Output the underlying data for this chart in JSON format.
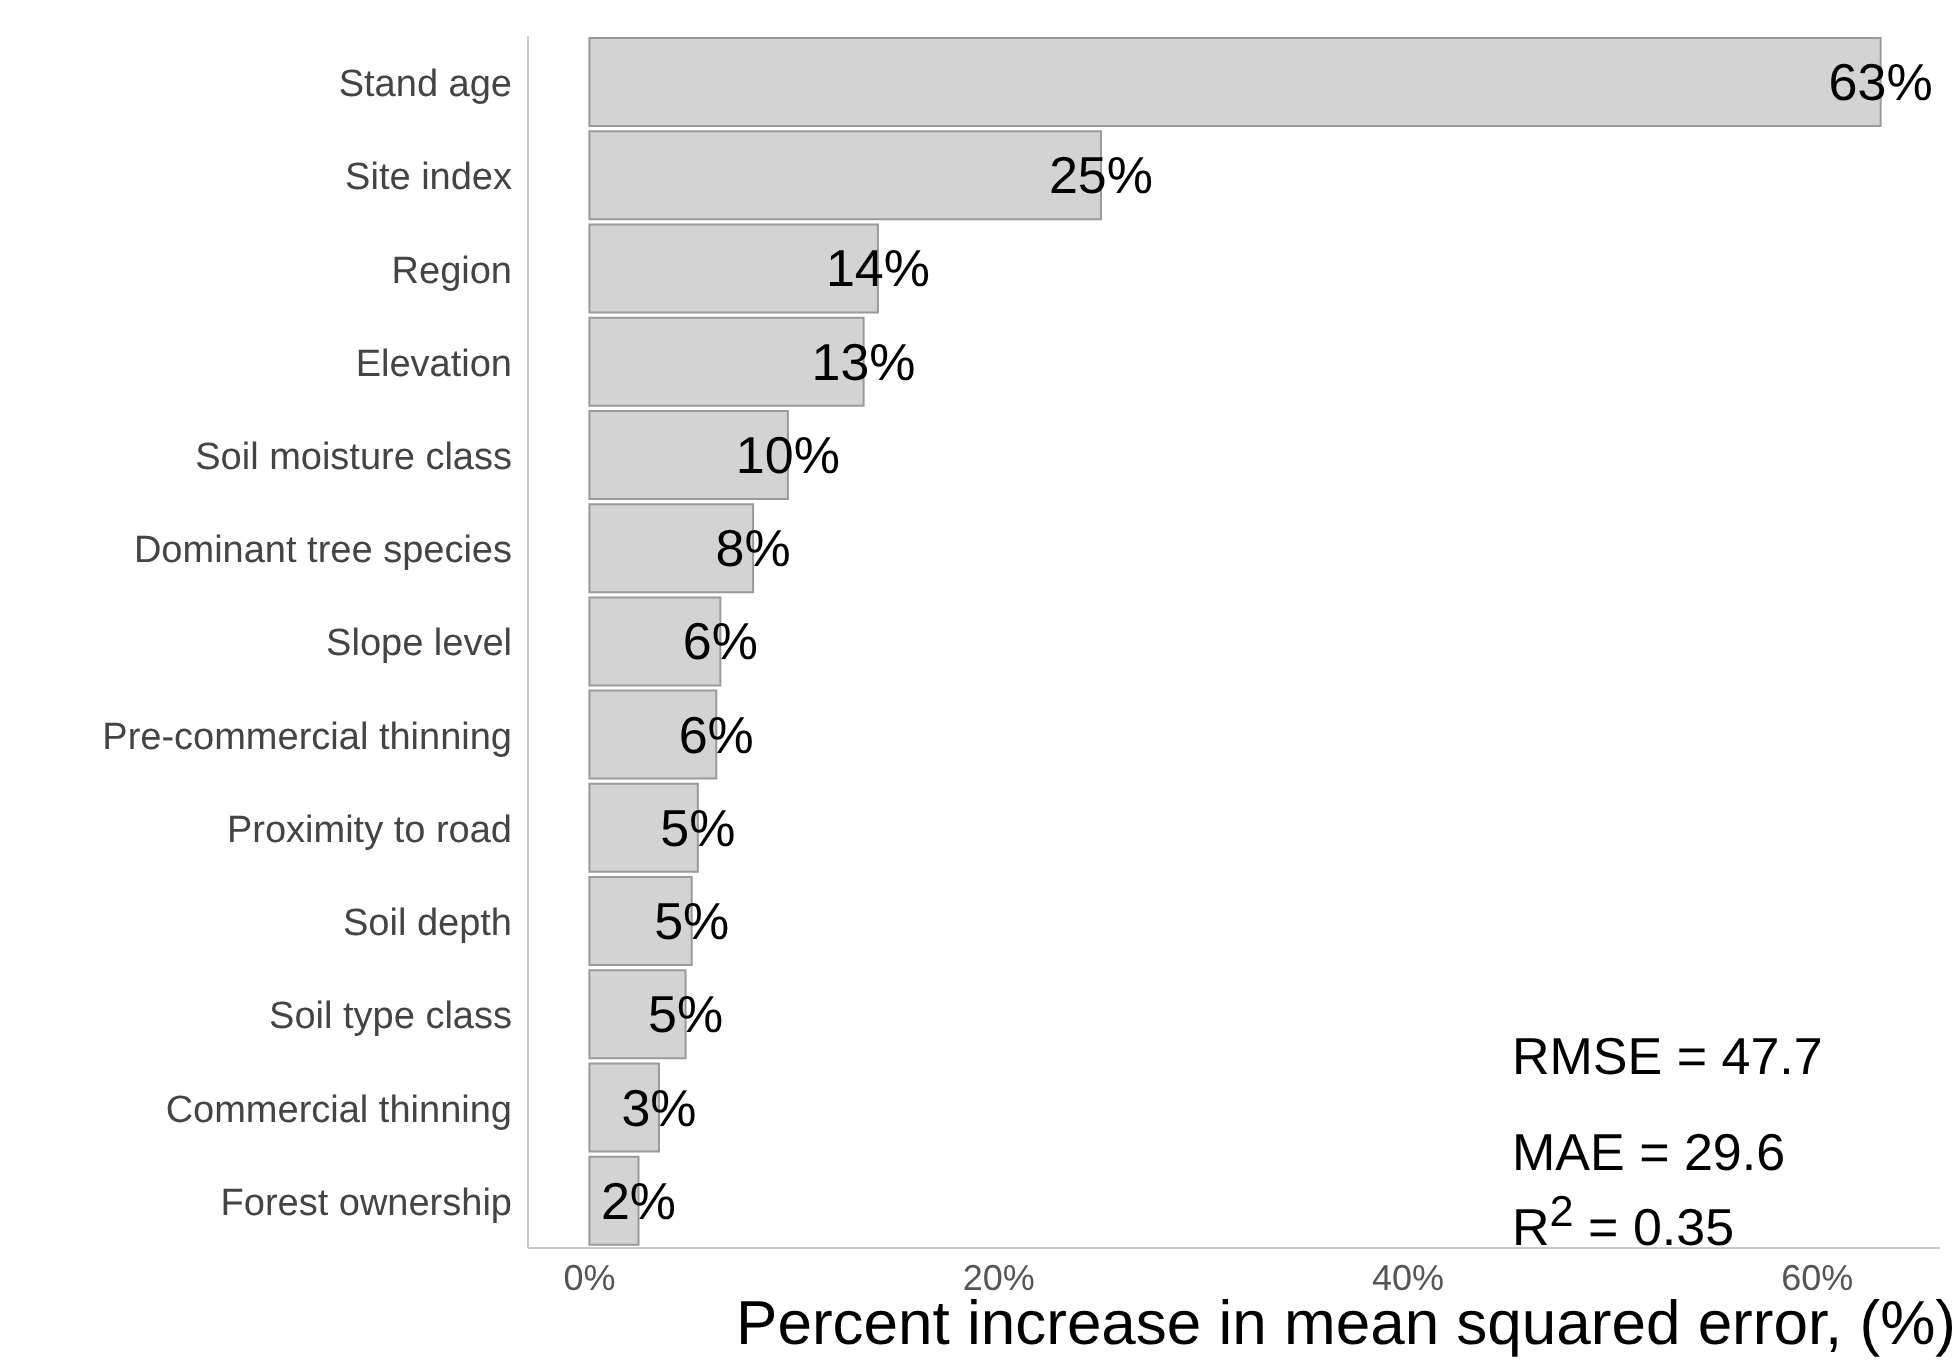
{
  "chart_data": {
    "type": "bar",
    "orientation": "horizontal",
    "xlabel": "Percent increase in mean squared error, (%)",
    "categories": [
      "Stand age",
      "Site index",
      "Region",
      "Elevation",
      "Soil moisture class",
      "Dominant tree species",
      "Slope level",
      "Pre-commercial thinning",
      "Proximity to road",
      "Soil depth",
      "Soil type class",
      "Commercial thinning",
      "Forest ownership"
    ],
    "values": [
      63.1,
      25.0,
      14.1,
      13.4,
      9.7,
      8.0,
      6.4,
      6.2,
      5.3,
      5.0,
      4.7,
      3.4,
      2.4
    ],
    "value_labels": [
      "63%",
      "25%",
      "14%",
      "13%",
      "10%",
      "8%",
      "6%",
      "6%",
      "5%",
      "5%",
      "5%",
      "3%",
      "2%"
    ],
    "color": "#d3d3d3",
    "xlim": [
      -3,
      66
    ],
    "xticks": [
      {
        "value": 0,
        "label": "0%"
      },
      {
        "value": 20,
        "label": "20%"
      },
      {
        "value": 40,
        "label": "40%"
      },
      {
        "value": 60,
        "label": "60%"
      }
    ],
    "grid": false,
    "annotations": [
      "RMSE = 47.7",
      "MAE = 29.6",
      "R$^{2}$ = 0.35"
    ]
  }
}
